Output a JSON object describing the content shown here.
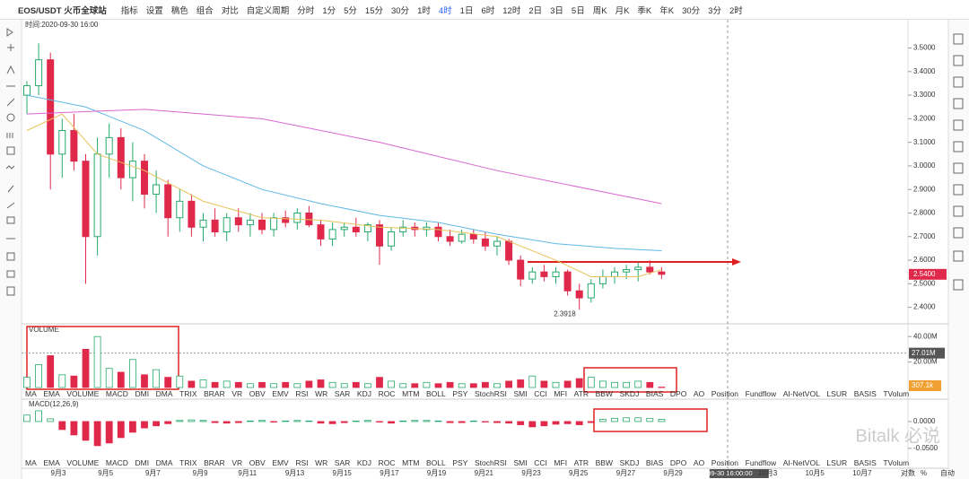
{
  "toolbar": {
    "symbol": "EOS/USDT 火币全球站",
    "buttons": [
      "指标",
      "设置",
      "稿色",
      "组合",
      "对比"
    ],
    "custom_period": "自定义周期",
    "periods": [
      "分时",
      "1分",
      "5分",
      "15分",
      "30分",
      "1时",
      "4时",
      "1日",
      "6时",
      "12时",
      "2日",
      "3日",
      "5日",
      "周K",
      "月K",
      "季K",
      "年K",
      "30分",
      "3分",
      "2时"
    ],
    "active_period": "4时",
    "interval": "6秒"
  },
  "info_line": "时间:2020-09-30 16:00",
  "indicator_tabs": [
    "MA",
    "EMA",
    "VOLUME",
    "MACD",
    "DMI",
    "DMA",
    "TRIX",
    "BRAR",
    "VR",
    "OBV",
    "EMV",
    "RSI",
    "WR",
    "SAR",
    "KDJ",
    "ROC",
    "MTM",
    "BOLL",
    "PSY",
    "StochRSI",
    "SMI",
    "CCI",
    "MFI",
    "ATR",
    "BBW",
    "SKDJ",
    "BIAS",
    "DPO",
    "AO",
    "Position",
    "Fundflow",
    "AI-NetVOL",
    "LSUR",
    "BASIS",
    "TVolume",
    "FTBS",
    "TTSI",
    "TTMU",
    "AI-BSI",
    "MLR",
    "AI-PO",
    "AI-FDI",
    "AI-LI",
    "FR",
    "AI-BST"
  ],
  "date_labels": [
    "9月3",
    "9月5",
    "9月7",
    "9月9",
    "9月11",
    "9月13",
    "9月15",
    "9月17",
    "9月19",
    "9月21",
    "9月23",
    "9月25",
    "9月27",
    "9月29",
    "2020-09-30 16:00:00",
    "10月3",
    "10月5",
    "10月7"
  ],
  "axis_options": [
    "对数",
    "%",
    "自动"
  ],
  "watermark": "Bitalk 必说",
  "chart_data": {
    "type": "candlestick",
    "up_color": "#26a96c",
    "down_color": "#e0294a",
    "ylim": [
      2.33,
      3.62
    ],
    "yticks": [
      {
        "value": 2.4,
        "label": "2.4000"
      },
      {
        "value": 2.5,
        "label": "2.5000"
      },
      {
        "value": 2.6,
        "label": "2.6000"
      },
      {
        "value": 2.7,
        "label": "2.7000"
      },
      {
        "value": 2.8,
        "label": "2.8000"
      },
      {
        "value": 2.9,
        "label": "2.9000"
      },
      {
        "value": 3.0,
        "label": "3.0000"
      },
      {
        "value": 3.1,
        "label": "3.1000"
      },
      {
        "value": 3.2,
        "label": "3.2000"
      },
      {
        "value": 3.3,
        "label": "3.3000"
      },
      {
        "value": 3.4,
        "label": "3.4000"
      },
      {
        "value": 3.5,
        "label": "3.5000"
      }
    ],
    "open": [
      3.3,
      3.34,
      3.45,
      3.05,
      3.15,
      3.02,
      2.7,
      3.05,
      3.12,
      2.95,
      3.02,
      2.88,
      2.92,
      2.78,
      2.85,
      2.74,
      2.77,
      2.72,
      2.78,
      2.75,
      2.77,
      2.73,
      2.78,
      2.76,
      2.8,
      2.75,
      2.69,
      2.73,
      2.74,
      2.72,
      2.75,
      2.66,
      2.72,
      2.74,
      2.73,
      2.74,
      2.7,
      2.68,
      2.71,
      2.69,
      2.66,
      2.68,
      2.6,
      2.52,
      2.55,
      2.53,
      2.55,
      2.47,
      2.44,
      2.5,
      2.53,
      2.55,
      2.56,
      2.57,
      2.55
    ],
    "high": [
      3.36,
      3.52,
      3.48,
      3.2,
      3.22,
      3.05,
      3.12,
      3.18,
      3.16,
      3.1,
      3.05,
      2.98,
      2.94,
      2.9,
      2.88,
      2.8,
      2.82,
      2.8,
      2.82,
      2.8,
      2.8,
      2.8,
      2.81,
      2.82,
      2.83,
      2.77,
      2.76,
      2.76,
      2.78,
      2.76,
      2.77,
      2.74,
      2.77,
      2.76,
      2.76,
      2.76,
      2.73,
      2.73,
      2.73,
      2.72,
      2.7,
      2.69,
      2.62,
      2.57,
      2.58,
      2.57,
      2.56,
      2.5,
      2.52,
      2.56,
      2.57,
      2.58,
      2.59,
      2.6,
      2.57
    ],
    "low": [
      3.22,
      3.3,
      2.9,
      2.95,
      2.98,
      2.5,
      2.62,
      2.95,
      2.9,
      2.85,
      2.82,
      2.8,
      2.7,
      2.72,
      2.7,
      2.68,
      2.7,
      2.68,
      2.72,
      2.7,
      2.71,
      2.7,
      2.74,
      2.73,
      2.74,
      2.66,
      2.66,
      2.7,
      2.7,
      2.68,
      2.58,
      2.64,
      2.7,
      2.7,
      2.7,
      2.68,
      2.66,
      2.67,
      2.67,
      2.64,
      2.62,
      2.58,
      2.49,
      2.5,
      2.51,
      2.5,
      2.45,
      2.39,
      2.42,
      2.48,
      2.5,
      2.52,
      2.51,
      2.54,
      2.52
    ],
    "close": [
      3.34,
      3.45,
      3.05,
      3.15,
      3.02,
      2.7,
      3.05,
      3.12,
      2.95,
      3.02,
      2.88,
      2.92,
      2.78,
      2.85,
      2.74,
      2.77,
      2.72,
      2.78,
      2.75,
      2.77,
      2.73,
      2.78,
      2.76,
      2.8,
      2.75,
      2.69,
      2.73,
      2.74,
      2.72,
      2.75,
      2.66,
      2.72,
      2.74,
      2.73,
      2.74,
      2.7,
      2.68,
      2.71,
      2.69,
      2.66,
      2.68,
      2.6,
      2.52,
      2.55,
      2.53,
      2.55,
      2.47,
      2.44,
      2.5,
      2.53,
      2.55,
      2.56,
      2.57,
      2.55,
      2.54
    ],
    "last_price_label": "2.5400",
    "low_annotation": "2.3918",
    "ma_lines": [
      {
        "color": "#e8c35a",
        "x": [
          0,
          3,
          6,
          10,
          15,
          20,
          25,
          30,
          35,
          40,
          45,
          48,
          52,
          54
        ],
        "values": [
          3.15,
          3.22,
          3.05,
          2.98,
          2.85,
          2.78,
          2.77,
          2.74,
          2.73,
          2.7,
          2.6,
          2.53,
          2.53,
          2.56
        ]
      },
      {
        "color": "#5fb8e6",
        "x": [
          0,
          5,
          10,
          15,
          20,
          25,
          30,
          35,
          40,
          45,
          50,
          54
        ],
        "values": [
          3.3,
          3.25,
          3.15,
          3.0,
          2.9,
          2.84,
          2.79,
          2.76,
          2.71,
          2.67,
          2.65,
          2.64
        ]
      },
      {
        "color": "#d966d0",
        "x": [
          0,
          10,
          20,
          30,
          40,
          50,
          54
        ],
        "values": [
          3.22,
          3.24,
          3.2,
          3.1,
          2.98,
          2.88,
          2.84
        ]
      }
    ],
    "volume": {
      "title": "VOLUME",
      "ylim": [
        0,
        49.3
      ],
      "yticks": [
        {
          "value": 20,
          "label": "20.00M"
        },
        {
          "value": 40,
          "label": "40.00M"
        }
      ],
      "ma_value": {
        "value": 27.01,
        "label": "27.01M"
      },
      "values": [
        8,
        18,
        25,
        10,
        9,
        30,
        40,
        15,
        12,
        22,
        10,
        14,
        8,
        9,
        5,
        6,
        4,
        5,
        4,
        3,
        4,
        3,
        4,
        3,
        5,
        6,
        4,
        3,
        4,
        3,
        8,
        5,
        3,
        3,
        4,
        3,
        4,
        3,
        3,
        4,
        3,
        5,
        6,
        9,
        5,
        4,
        5,
        7,
        8,
        5,
        4,
        4,
        5,
        4,
        0.3071
      ],
      "last_value_label": "307.1k"
    },
    "macd": {
      "title": "MACD(12,26,9)",
      "ylim": [
        -0.067,
        0.04
      ],
      "yticks": [
        {
          "value": 0,
          "label": "0.0000"
        },
        {
          "value": -0.05,
          "label": "-0.0500"
        }
      ],
      "values": [
        0.012,
        0.02,
        0.005,
        -0.015,
        -0.025,
        -0.035,
        -0.045,
        -0.04,
        -0.03,
        -0.02,
        -0.012,
        -0.008,
        -0.004,
        0.002,
        0.003,
        0.002,
        -0.002,
        -0.003,
        -0.002,
        0.001,
        0.002,
        -0.001,
        0.001,
        0.002,
        0.001,
        -0.003,
        -0.004,
        -0.002,
        0.001,
        0.002,
        -0.001,
        -0.003,
        0.001,
        0.002,
        0.002,
        0.001,
        -0.002,
        -0.002,
        0.001,
        -0.001,
        -0.002,
        -0.003,
        -0.006,
        -0.01,
        -0.008,
        -0.005,
        -0.004,
        -0.006,
        -0.002,
        0.004,
        0.006,
        0.007,
        0.007,
        0.006,
        0.004
      ]
    }
  }
}
